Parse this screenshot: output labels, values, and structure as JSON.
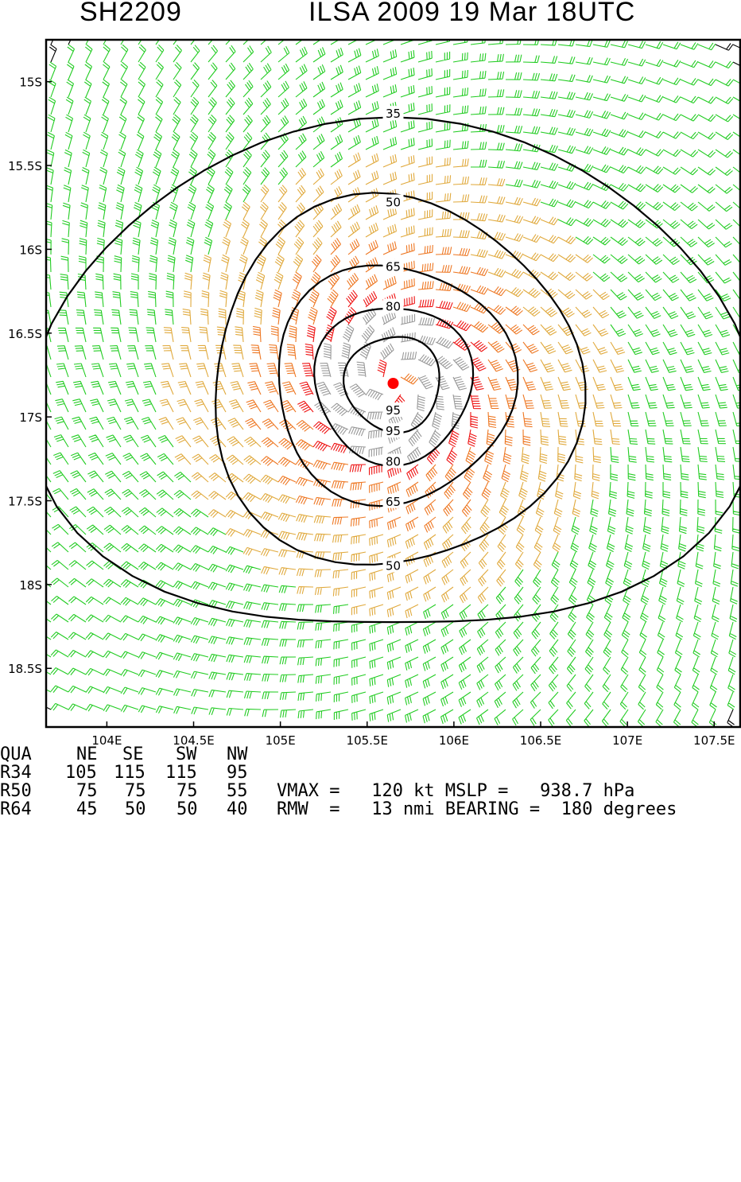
{
  "header": {
    "storm_id": "SH2209",
    "title": "ILSA 2009 19 Mar 18UTC"
  },
  "map": {
    "lon_range": [
      103.65,
      107.65
    ],
    "lat_range": [
      -18.85,
      -14.75
    ],
    "lat_labels": [
      "15S",
      "15.5S",
      "16S",
      "16.5S",
      "17S",
      "17.5S",
      "18S",
      "18.5S"
    ],
    "lat_values": [
      -15,
      -15.5,
      -16,
      -16.5,
      -17,
      -17.5,
      -18,
      -18.5
    ],
    "lon_labels": [
      "104E",
      "104.5E",
      "105E",
      "105.5E",
      "106E",
      "106.5E",
      "107E",
      "107.5E"
    ],
    "lon_values": [
      104,
      104.5,
      105,
      105.5,
      106,
      106.5,
      107,
      107.5
    ],
    "center": {
      "lon": 105.65,
      "lat": -16.8
    },
    "contours": [
      {
        "label": "35",
        "label_positions": [
          "top"
        ]
      },
      {
        "label": "50",
        "label_positions": [
          "top",
          "bottom"
        ]
      },
      {
        "label": "65",
        "label_positions": [
          "top",
          "bottom"
        ]
      },
      {
        "label": "80",
        "label_positions": [
          "top",
          "bottom"
        ]
      },
      {
        "label": "95",
        "label_positions": [
          "inner",
          "bottom"
        ]
      }
    ],
    "wind_colors": {
      "below_34": "#000000",
      "34_to_50": "#22cc22",
      "50_to_64": "#e0a93c",
      "64_to_83": "#ee7722",
      "83_to_96": "#ee1111",
      "above_96": "#999999"
    },
    "center_marker_color": "#ff0000"
  },
  "table": {
    "header": [
      "QUA",
      "NE",
      "SE",
      "SW",
      "NW"
    ],
    "rows": [
      {
        "label": "R34",
        "values": [
          "105",
          "115",
          "115",
          "95"
        ]
      },
      {
        "label": "R50",
        "values": [
          "75",
          "75",
          "75",
          "55"
        ]
      },
      {
        "label": "R64",
        "values": [
          "45",
          "50",
          "50",
          "40"
        ]
      }
    ],
    "line1": "VMAX =   120 kt MSLP =   938.7 hPa",
    "line2": "RMW  =   13 nmi BEARING =  180 degrees"
  }
}
